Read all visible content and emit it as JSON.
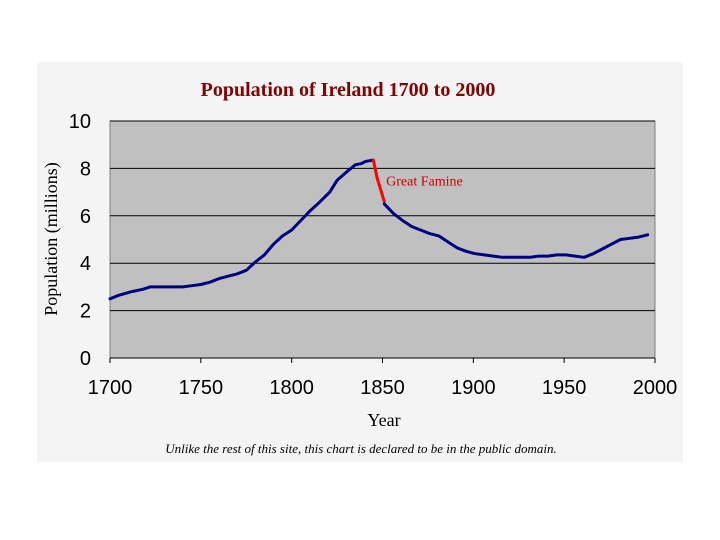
{
  "colors": {
    "title": "#800000",
    "plot_bg": "#c0c0c0",
    "series_line": "#000080",
    "famine_line": "#ff0000",
    "annotation": "#cc0000",
    "gridline": "#000000"
  },
  "footnote": "Unlike the rest of this site, this chart is declared to be in the public domain.",
  "chart_data": {
    "type": "line",
    "title": "Population of Ireland 1700 to 2000",
    "xlabel": "Year",
    "ylabel": "Population (millions)",
    "xlim": [
      1700,
      2000
    ],
    "ylim": [
      0,
      10
    ],
    "x_ticks": [
      "1700",
      "1750",
      "1800",
      "1850",
      "1900",
      "1950",
      "2000"
    ],
    "y_ticks": [
      "0",
      "2",
      "4",
      "6",
      "8",
      "10"
    ],
    "grid": "horizontal",
    "series": [
      {
        "x": [
          1700,
          1705,
          1712,
          1718,
          1722,
          1725,
          1730,
          1740,
          1745,
          1750,
          1755,
          1760,
          1765,
          1770,
          1775,
          1780,
          1785,
          1790,
          1795,
          1800,
          1805,
          1810,
          1815,
          1821,
          1825,
          1831,
          1835,
          1838,
          1841,
          1845
        ],
        "y": [
          2.5,
          2.65,
          2.8,
          2.9,
          3.0,
          3.0,
          3.0,
          3.0,
          3.05,
          3.1,
          3.2,
          3.35,
          3.45,
          3.55,
          3.7,
          4.05,
          4.35,
          4.8,
          5.15,
          5.4,
          5.8,
          6.2,
          6.55,
          7.0,
          7.5,
          7.9,
          8.15,
          8.2,
          8.3,
          8.35
        ]
      },
      {
        "x": [
          1845,
          1847,
          1849,
          1851
        ],
        "y": [
          8.35,
          7.6,
          7.1,
          6.6
        ]
      },
      {
        "x": [
          1851,
          1856,
          1861,
          1866,
          1871,
          1876,
          1881,
          1886,
          1891,
          1896,
          1901,
          1906,
          1911,
          1916,
          1921,
          1926,
          1931,
          1936,
          1941,
          1946,
          1951,
          1956,
          1961,
          1966,
          1971,
          1976,
          1981,
          1986,
          1991,
          1996
        ],
        "y": [
          6.5,
          6.1,
          5.8,
          5.55,
          5.4,
          5.25,
          5.15,
          4.9,
          4.65,
          4.5,
          4.4,
          4.35,
          4.3,
          4.25,
          4.25,
          4.25,
          4.25,
          4.3,
          4.3,
          4.35,
          4.35,
          4.3,
          4.25,
          4.4,
          4.6,
          4.8,
          5.0,
          5.05,
          5.1,
          5.2
        ]
      }
    ],
    "annotations": [
      {
        "text": "Great Famine",
        "x": 1852,
        "y": 7.5
      }
    ]
  }
}
